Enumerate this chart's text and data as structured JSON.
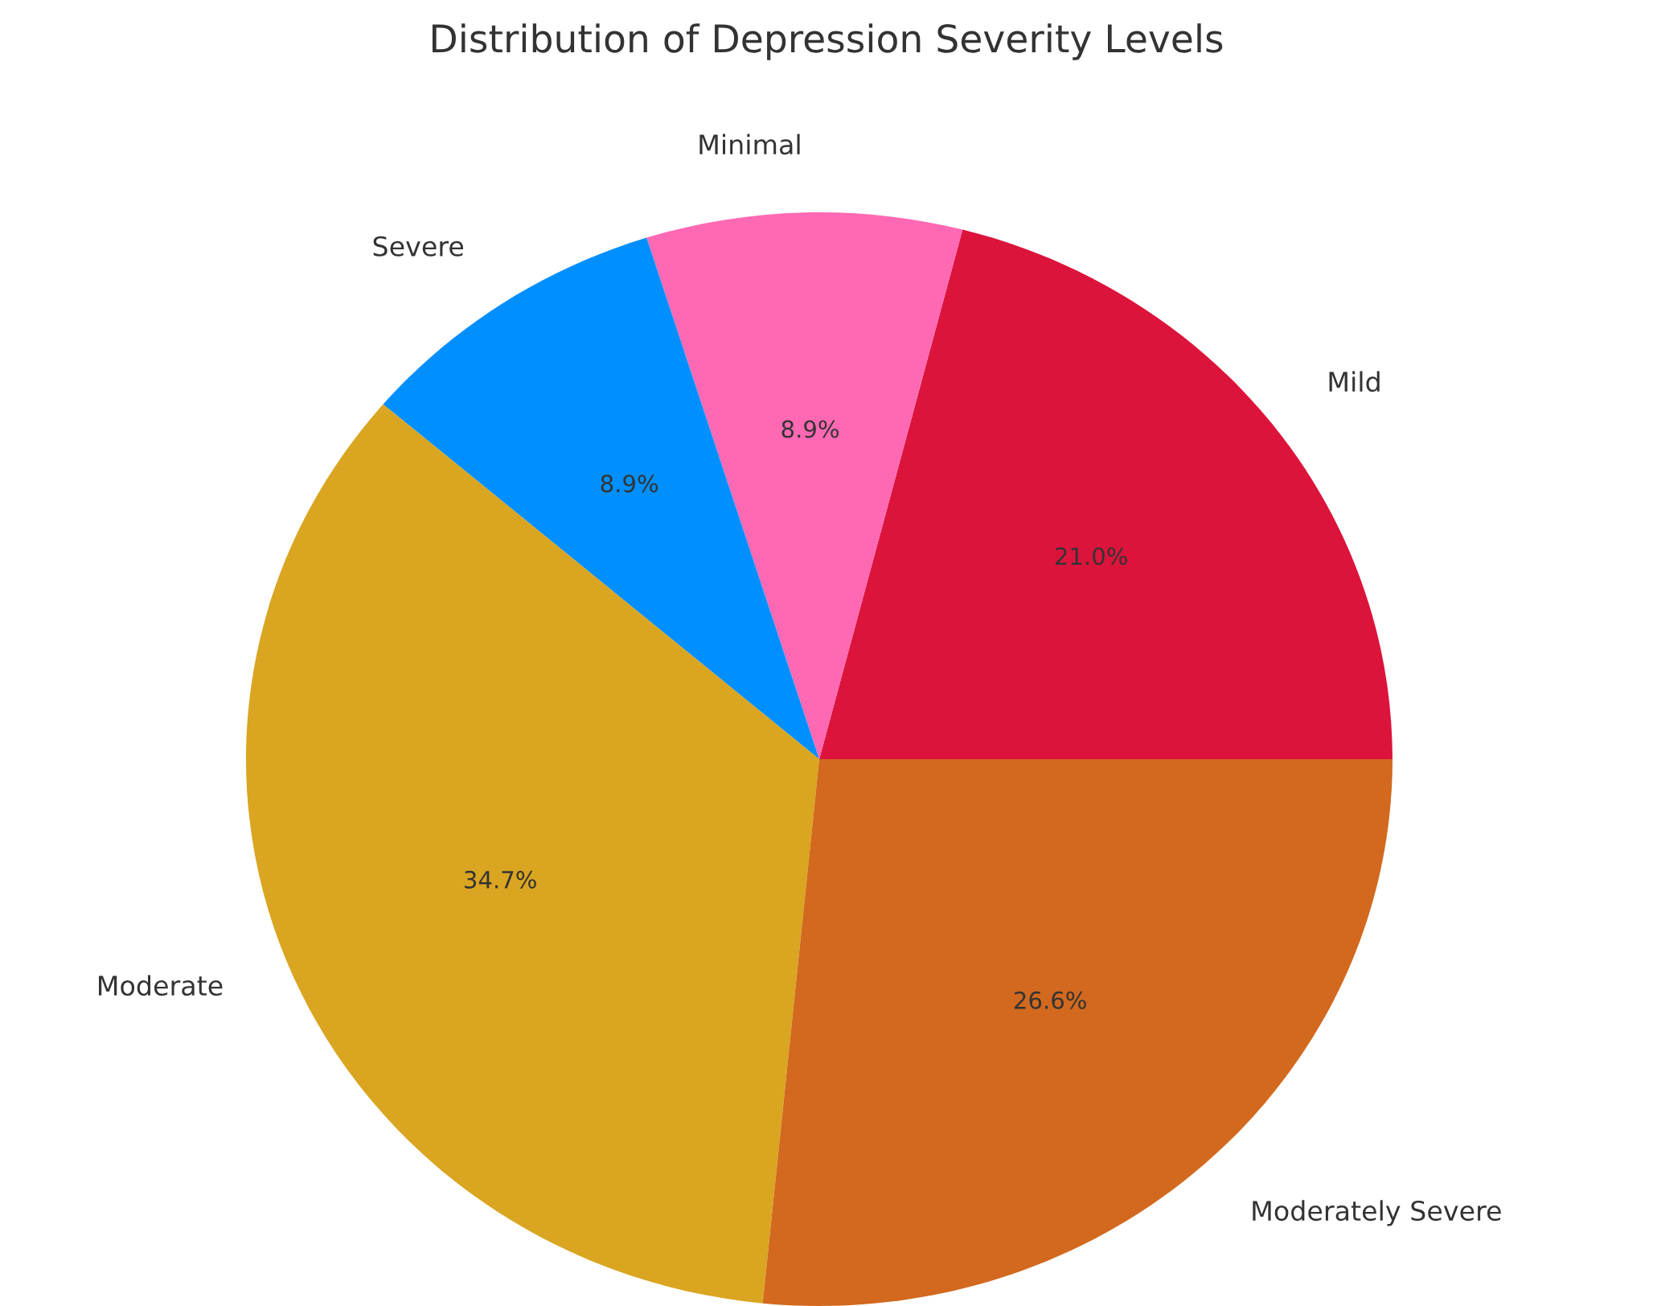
{
  "chart_data": {
    "type": "pie",
    "title": "Distribution of Depression Severity Levels",
    "categories": [
      "Mild",
      "Minimal",
      "Severe",
      "Moderate",
      "Moderately Severe"
    ],
    "values": [
      21.0,
      8.9,
      8.9,
      34.7,
      26.6
    ],
    "value_labels": [
      "21.0%",
      "8.9%",
      "8.9%",
      "34.7%",
      "26.6%"
    ],
    "colors": [
      "#dc143c",
      "#ff69b4",
      "#008fff",
      "#daa520",
      "#d2691e"
    ]
  }
}
